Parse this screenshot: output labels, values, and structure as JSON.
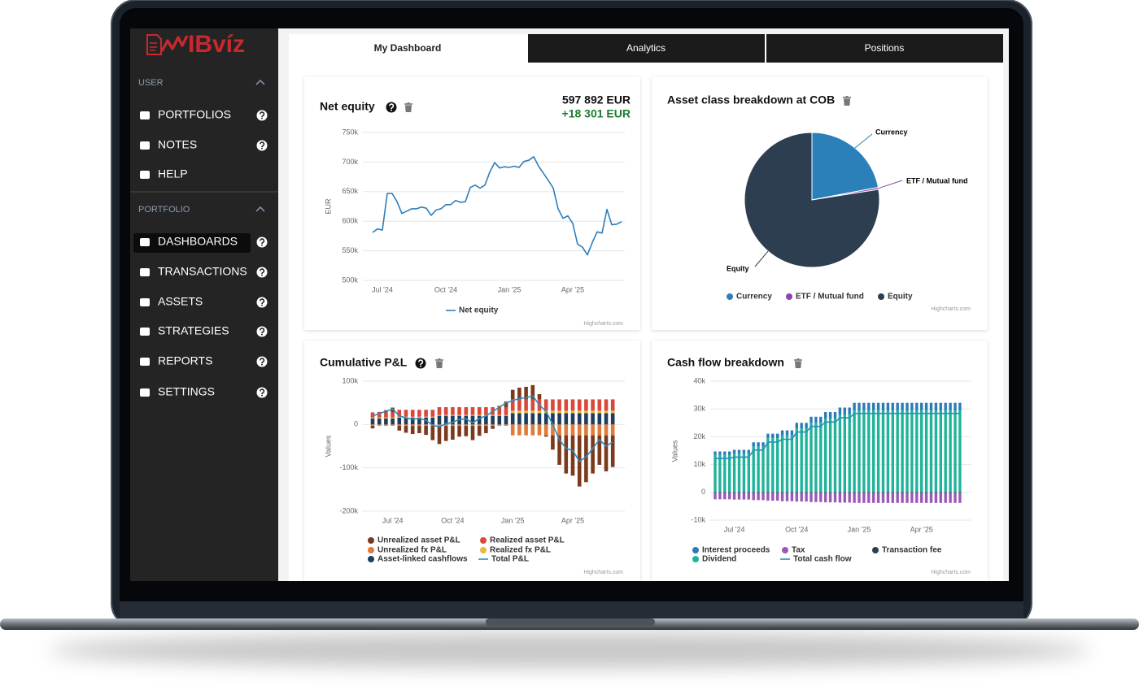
{
  "logo": "IBvíz",
  "sidebar": [
    {
      "title": "USER",
      "items": [
        "PORTFOLIOS",
        "NOTES",
        "HELP"
      ]
    },
    {
      "title": "PORTFOLIO",
      "items": [
        "DASHBOARDS",
        "TRANSACTIONS",
        "ASSETS",
        "STRATEGIES",
        "REPORTS",
        "SETTINGS"
      ]
    }
  ],
  "tabs": [
    "My Dashboard",
    "Analytics",
    "Positions"
  ],
  "widgets": [
    {
      "title": "Net equity",
      "total": "597 892 EUR",
      "change": "+18 301 EUR",
      "chart_data": {
        "type": "line",
        "y_label": "EUR",
        "credits": "Highcharts.com",
        "grid": true,
        "legend": "bottom",
        "categories": [
          null,
          null,
          "Jul '24",
          null,
          null,
          null,
          null,
          null,
          null,
          null,
          null,
          null,
          null,
          null,
          null,
          "Oct '24",
          null,
          null,
          null,
          null,
          null,
          null,
          null,
          null,
          null,
          null,
          null,
          null,
          "Jan '25",
          null,
          null,
          null,
          null,
          null,
          null,
          null,
          null,
          null,
          null,
          null,
          null,
          "Apr '25",
          null,
          null,
          null,
          null,
          null,
          null,
          null,
          null,
          null,
          null
        ],
        "series": [
          {
            "name": "Net equity",
            "color": "#2f7ebc",
            "values": [
              581000,
              587000,
              585000,
              647000,
              647000,
              633000,
              613000,
              617000,
              621000,
              621000,
              624000,
              622000,
              610000,
              619000,
              621000,
              628000,
              628000,
              635000,
              632000,
              633000,
              657000,
              661000,
              656000,
              661000,
              683000,
              699000,
              690000,
              692000,
              691000,
              693000,
              691000,
              701000,
              703000,
              709000,
              693000,
              681000,
              669000,
              656000,
              621000,
              605000,
              609000,
              596000,
              561000,
              556000,
              543000,
              564000,
              582000,
              580000,
              620000,
              594000,
              595000,
              599000
            ]
          }
        ],
        "ylim": [
          500000,
          750000
        ],
        "yticks": [
          {
            "value": 500000,
            "label": "500k"
          },
          {
            "value": 550000,
            "label": "550k"
          },
          {
            "value": 600000,
            "label": "600k"
          },
          {
            "value": 650000,
            "label": "650k"
          },
          {
            "value": 700000,
            "label": "700k"
          },
          {
            "value": 750000,
            "label": "750k"
          }
        ]
      }
    },
    {
      "title": "Asset class breakdown at COB",
      "chart_data": {
        "type": "pie",
        "credits": "Highcharts.com",
        "legend": "bottom",
        "categories": [
          "Currency",
          "ETF / Mutual fund",
          "Equity"
        ],
        "values": [
          22,
          0.5,
          77.5
        ],
        "colors": [
          "#2b80ba",
          "#8e44ad",
          "#2c3e50"
        ]
      }
    },
    {
      "title": "Cumulative P&L",
      "chart_data": {
        "type": "column",
        "stacking": "normal",
        "y_label": "Values",
        "credits": "Highcharts.com",
        "grid": true,
        "legend": "bottom",
        "categories": [
          null,
          null,
          null,
          "Jul '24",
          null,
          null,
          null,
          null,
          null,
          null,
          null,
          null,
          "Oct '24",
          null,
          null,
          null,
          null,
          null,
          null,
          null,
          null,
          "Jan '25",
          null,
          null,
          null,
          null,
          null,
          null,
          null,
          null,
          "Apr '25",
          null,
          null,
          null,
          null,
          null,
          null
        ],
        "series": [
          {
            "name": "Unrealized asset P&L",
            "color": "#7b3a1c",
            "values": [
              -6000,
              1000,
              5000,
              11000,
              -11000,
              -16000,
              -19000,
              -17000,
              -21000,
              -33000,
              -42000,
              -35000,
              -32000,
              -25000,
              -24000,
              -33000,
              -23000,
              -17000,
              -7000,
              3000,
              13000,
              22000,
              27000,
              29000,
              33000,
              12000,
              -3000,
              -33000,
              -68000,
              -88000,
              -93000,
              -118000,
              -108000,
              -88000,
              -68000,
              -83000,
              -73000
            ]
          },
          {
            "name": "Realized asset P&L",
            "color": "#d9483b",
            "values": [
              12000,
              12000,
              12000,
              12000,
              16000,
              16000,
              16000,
              16000,
              16000,
              16000,
              18000,
              18000,
              18000,
              18000,
              18000,
              18000,
              18000,
              18000,
              18000,
              18000,
              18000,
              26000,
              26000,
              26000,
              26000,
              26000,
              26000,
              26000,
              26000,
              26000,
              26000,
              26000,
              26000,
              26000,
              26000,
              26000,
              26000
            ]
          },
          {
            "name": "Unrealized fx P&L",
            "color": "#e07b39",
            "values": [
              -3000,
              -3000,
              -3000,
              -3000,
              -3000,
              -3000,
              -3000,
              -3000,
              -3000,
              -3000,
              -3000,
              -3000,
              -3000,
              -3000,
              -3000,
              -3000,
              -3000,
              -3000,
              -3000,
              -3000,
              -3000,
              -25000,
              -25000,
              -25000,
              -25000,
              -25000,
              -25000,
              -25000,
              -25000,
              -25000,
              -25000,
              -25000,
              -25000,
              -25000,
              -25000,
              -25000,
              -25000
            ]
          },
          {
            "name": "Realized fx P&L",
            "color": "#f0b43c",
            "values": [
              2000,
              2000,
              2000,
              2000,
              2000,
              2000,
              2000,
              2000,
              2000,
              2000,
              2000,
              2000,
              2000,
              2000,
              2000,
              2000,
              2000,
              2000,
              2000,
              2000,
              2000,
              6000,
              6000,
              6000,
              6000,
              6000,
              6000,
              6000,
              6000,
              6000,
              6000,
              6000,
              6000,
              6000,
              6000,
              6000,
              6000
            ]
          },
          {
            "name": "Asset-linked cashflows",
            "color": "#1f3d5c",
            "values": [
              14000,
              14000,
              14000,
              14000,
              16000,
              16000,
              16000,
              16000,
              16000,
              16000,
              20000,
              20000,
              20000,
              20000,
              20000,
              20000,
              20000,
              20000,
              20000,
              20000,
              20000,
              26000,
              26000,
              26000,
              26000,
              26000,
              26000,
              26000,
              26000,
              26000,
              26000,
              26000,
              26000,
              26000,
              26000,
              26000,
              26000
            ]
          },
          {
            "name": "Total P&L",
            "type": "line",
            "color": "#2b8cbe",
            "values": [
              19000,
              26000,
              30000,
              36000,
              20000,
              15000,
              12000,
              14000,
              10000,
              -2000,
              -5000,
              2000,
              5000,
              12000,
              13000,
              4000,
              14000,
              20000,
              30000,
              40000,
              50000,
              55000,
              60000,
              62000,
              66000,
              45000,
              30000,
              0,
              -35000,
              -55000,
              -60000,
              -85000,
              -75000,
              -55000,
              -35000,
              -50000,
              -40000
            ]
          }
        ],
        "ylim": [
          -200000,
          100000
        ],
        "yticks": [
          {
            "value": -200000,
            "label": "-200k"
          },
          {
            "value": -100000,
            "label": "-100k"
          },
          0,
          {
            "value": 100000,
            "label": "100k"
          }
        ]
      }
    },
    {
      "title": "Cash flow breakdown",
      "chart_data": {
        "type": "column",
        "stacking": "normal",
        "y_label": "Values",
        "credits": "Highcharts.com",
        "grid": true,
        "legend": "bottom",
        "categories": [
          null,
          null,
          null,
          null,
          "Jul '24",
          null,
          null,
          null,
          null,
          null,
          null,
          null,
          null,
          null,
          null,
          null,
          null,
          "Oct '24",
          null,
          null,
          null,
          null,
          null,
          null,
          null,
          null,
          null,
          null,
          null,
          null,
          "Jan '25",
          null,
          null,
          null,
          null,
          null,
          null,
          null,
          null,
          null,
          null,
          null,
          null,
          "Apr '25",
          null,
          null,
          null,
          null,
          null,
          null,
          null,
          null
        ],
        "series": [
          {
            "name": "Interest proceeds",
            "color": "#2b7bba",
            "values": [
              1200,
              1200,
              1200,
              1200,
              1300,
              1300,
              1300,
              1300,
              1500,
              1500,
              1500,
              1600,
              1600,
              1600,
              1800,
              1800,
              1800,
              2000,
              2000,
              2000,
              2200,
              2200,
              2200,
              2400,
              2400,
              2400,
              2500,
              2500,
              2500,
              2700,
              2700,
              2700,
              2700,
              2700,
              2700,
              2700,
              2700,
              2700,
              2700,
              2700,
              2700,
              2700,
              2700,
              2700,
              2700,
              2700,
              2700,
              2700,
              2700,
              2700,
              2700,
              2700
            ]
          },
          {
            "name": "Tax",
            "color": "#9b59b6",
            "values": [
              -2300,
              -2300,
              -2300,
              -2300,
              -2400,
              -2400,
              -2400,
              -2400,
              -2600,
              -2600,
              -2600,
              -2800,
              -2800,
              -2800,
              -3000,
              -3000,
              -3000,
              -3100,
              -3100,
              -3100,
              -3300,
              -3300,
              -3300,
              -3400,
              -3400,
              -3400,
              -3500,
              -3500,
              -3500,
              -3600,
              -3600,
              -3600,
              -3600,
              -3600,
              -3600,
              -3600,
              -3600,
              -3600,
              -3600,
              -3600,
              -3600,
              -3600,
              -3600,
              -3600,
              -3600,
              -3600,
              -3600,
              -3600,
              -3600,
              -3600,
              -3600,
              -3600
            ]
          },
          {
            "name": "Transaction fee",
            "color": "#2c3e50",
            "values": [
              -200,
              -200,
              -200,
              -200,
              -200,
              -200,
              -200,
              -200,
              -200,
              -200,
              -200,
              -200,
              -200,
              -200,
              -200,
              -200,
              -200,
              -200,
              -200,
              -200,
              -200,
              -200,
              -200,
              -200,
              -200,
              -200,
              -200,
              -200,
              -200,
              -200,
              -200,
              -200,
              -200,
              -200,
              -200,
              -200,
              -200,
              -200,
              -200,
              -200,
              -200,
              -200,
              -200,
              -200,
              -200,
              -200,
              -200,
              -200,
              -200,
              -200,
              -200,
              -200
            ]
          },
          {
            "name": "Dividend",
            "color": "#1fb39a",
            "values": [
              13500,
              13500,
              13500,
              13500,
              14000,
              14000,
              14000,
              14000,
              16500,
              16500,
              16500,
              19500,
              19500,
              19500,
              20500,
              20500,
              20500,
              23000,
              23000,
              23000,
              25000,
              25000,
              25000,
              26500,
              26500,
              26500,
              28000,
              28000,
              28000,
              29500,
              29500,
              29500,
              29500,
              29500,
              29500,
              29500,
              29500,
              29500,
              29500,
              29500,
              29500,
              29500,
              29500,
              29500,
              29500,
              29500,
              29500,
              29500,
              29500,
              29500,
              29500,
              29500
            ]
          },
          {
            "name": "Total cash flow",
            "type": "line",
            "color": "#2b8cbe",
            "values": [
              12200,
              12200,
              12200,
              12200,
              12700,
              12700,
              12700,
              12700,
              15200,
              15200,
              15200,
              18100,
              18100,
              18100,
              19100,
              19100,
              19100,
              21700,
              21700,
              21700,
              23700,
              23700,
              23700,
              25300,
              25300,
              25300,
              26800,
              26800,
              26800,
              28400,
              28400,
              28400,
              28400,
              28400,
              28400,
              28400,
              28400,
              28400,
              28400,
              28400,
              28400,
              28400,
              28400,
              28400,
              28400,
              28400,
              28400,
              28400,
              28400,
              28400,
              28400,
              28400
            ]
          }
        ],
        "ylim": [
          -10000,
          40000
        ],
        "yticks": [
          {
            "value": -10000,
            "label": "-10k"
          },
          0,
          {
            "value": 10000,
            "label": "10k"
          },
          {
            "value": 20000,
            "label": "20k"
          },
          {
            "value": 30000,
            "label": "30k"
          },
          {
            "value": 40000,
            "label": "40k"
          }
        ]
      }
    }
  ]
}
